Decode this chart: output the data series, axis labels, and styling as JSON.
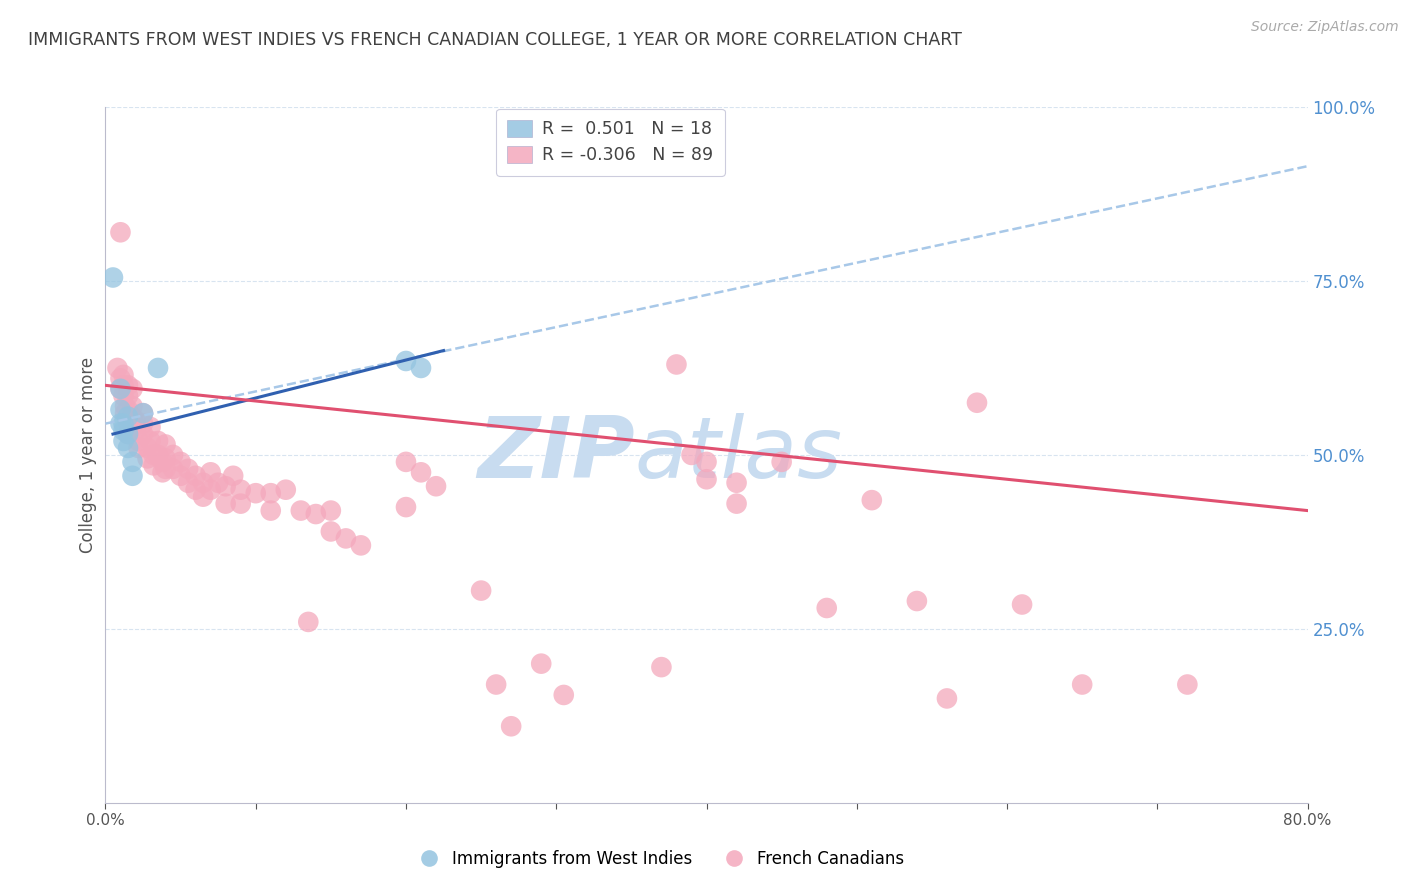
{
  "title": "IMMIGRANTS FROM WEST INDIES VS FRENCH CANADIAN COLLEGE, 1 YEAR OR MORE CORRELATION CHART",
  "source": "Source: ZipAtlas.com",
  "ylabel_left": "College, 1 year or more",
  "xlim": [
    0.0,
    0.8
  ],
  "ylim": [
    0.0,
    1.0
  ],
  "legend_label1": "Immigrants from West Indies",
  "legend_label2": "French Canadians",
  "blue_color": "#94C4E0",
  "pink_color": "#F4A8BC",
  "blue_line_color": "#3060B0",
  "pink_line_color": "#E05070",
  "dashed_line_color": "#A8C8E8",
  "title_color": "#404040",
  "right_axis_color": "#5090D0",
  "grid_color": "#D8E4F0",
  "watermark_zip_color": "#C8DCF0",
  "watermark_atlas_color": "#C8DCF0",
  "blue_points": [
    [
      0.005,
      0.755
    ],
    [
      0.01,
      0.595
    ],
    [
      0.01,
      0.565
    ],
    [
      0.01,
      0.545
    ],
    [
      0.012,
      0.545
    ],
    [
      0.012,
      0.535
    ],
    [
      0.012,
      0.52
    ],
    [
      0.015,
      0.555
    ],
    [
      0.015,
      0.53
    ],
    [
      0.015,
      0.51
    ],
    [
      0.018,
      0.49
    ],
    [
      0.018,
      0.47
    ],
    [
      0.025,
      0.56
    ],
    [
      0.035,
      0.625
    ],
    [
      0.2,
      0.635
    ],
    [
      0.21,
      0.625
    ]
  ],
  "pink_points": [
    [
      0.008,
      0.625
    ],
    [
      0.01,
      0.61
    ],
    [
      0.01,
      0.595
    ],
    [
      0.01,
      0.82
    ],
    [
      0.012,
      0.615
    ],
    [
      0.012,
      0.6
    ],
    [
      0.012,
      0.585
    ],
    [
      0.013,
      0.57
    ],
    [
      0.013,
      0.56
    ],
    [
      0.015,
      0.6
    ],
    [
      0.015,
      0.585
    ],
    [
      0.015,
      0.565
    ],
    [
      0.015,
      0.545
    ],
    [
      0.015,
      0.53
    ],
    [
      0.018,
      0.595
    ],
    [
      0.018,
      0.57
    ],
    [
      0.018,
      0.555
    ],
    [
      0.02,
      0.55
    ],
    [
      0.02,
      0.535
    ],
    [
      0.022,
      0.52
    ],
    [
      0.022,
      0.51
    ],
    [
      0.025,
      0.56
    ],
    [
      0.025,
      0.545
    ],
    [
      0.025,
      0.53
    ],
    [
      0.028,
      0.51
    ],
    [
      0.028,
      0.495
    ],
    [
      0.03,
      0.54
    ],
    [
      0.03,
      0.52
    ],
    [
      0.032,
      0.5
    ],
    [
      0.032,
      0.485
    ],
    [
      0.035,
      0.52
    ],
    [
      0.035,
      0.5
    ],
    [
      0.038,
      0.49
    ],
    [
      0.038,
      0.475
    ],
    [
      0.04,
      0.515
    ],
    [
      0.04,
      0.495
    ],
    [
      0.04,
      0.48
    ],
    [
      0.045,
      0.5
    ],
    [
      0.045,
      0.48
    ],
    [
      0.05,
      0.49
    ],
    [
      0.05,
      0.47
    ],
    [
      0.055,
      0.48
    ],
    [
      0.055,
      0.46
    ],
    [
      0.06,
      0.47
    ],
    [
      0.06,
      0.45
    ],
    [
      0.065,
      0.46
    ],
    [
      0.065,
      0.44
    ],
    [
      0.07,
      0.475
    ],
    [
      0.07,
      0.45
    ],
    [
      0.075,
      0.46
    ],
    [
      0.08,
      0.455
    ],
    [
      0.08,
      0.43
    ],
    [
      0.085,
      0.47
    ],
    [
      0.09,
      0.45
    ],
    [
      0.09,
      0.43
    ],
    [
      0.1,
      0.445
    ],
    [
      0.11,
      0.445
    ],
    [
      0.11,
      0.42
    ],
    [
      0.12,
      0.45
    ],
    [
      0.13,
      0.42
    ],
    [
      0.135,
      0.26
    ],
    [
      0.14,
      0.415
    ],
    [
      0.15,
      0.42
    ],
    [
      0.15,
      0.39
    ],
    [
      0.16,
      0.38
    ],
    [
      0.17,
      0.37
    ],
    [
      0.2,
      0.49
    ],
    [
      0.2,
      0.425
    ],
    [
      0.21,
      0.475
    ],
    [
      0.22,
      0.455
    ],
    [
      0.25,
      0.305
    ],
    [
      0.26,
      0.17
    ],
    [
      0.27,
      0.11
    ],
    [
      0.29,
      0.2
    ],
    [
      0.305,
      0.155
    ],
    [
      0.37,
      0.195
    ],
    [
      0.38,
      0.63
    ],
    [
      0.39,
      0.5
    ],
    [
      0.4,
      0.49
    ],
    [
      0.4,
      0.465
    ],
    [
      0.42,
      0.46
    ],
    [
      0.42,
      0.43
    ],
    [
      0.45,
      0.49
    ],
    [
      0.48,
      0.28
    ],
    [
      0.51,
      0.435
    ],
    [
      0.54,
      0.29
    ],
    [
      0.56,
      0.15
    ],
    [
      0.58,
      0.575
    ],
    [
      0.61,
      0.285
    ],
    [
      0.65,
      0.17
    ],
    [
      0.72,
      0.17
    ]
  ],
  "blue_line": {
    "x0": 0.005,
    "x1": 0.225,
    "y0": 0.53,
    "y1": 0.65
  },
  "pink_line": {
    "x0": 0.0,
    "x1": 0.8,
    "y0": 0.6,
    "y1": 0.42
  },
  "dashed_line": {
    "x0": 0.0,
    "x1": 0.8,
    "y0": 0.545,
    "y1": 0.915
  }
}
